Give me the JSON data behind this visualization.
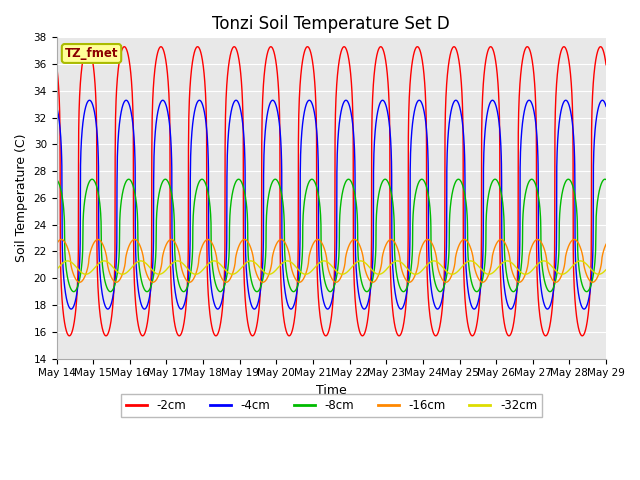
{
  "title": "Tonzi Soil Temperature Set D",
  "xlabel": "Time",
  "ylabel": "Soil Temperature (C)",
  "ylim": [
    14,
    38
  ],
  "x_tick_labels": [
    "May 14",
    "May 15",
    "May 16",
    "May 17",
    "May 18",
    "May 19",
    "May 20",
    "May 21",
    "May 22",
    "May 23",
    "May 24",
    "May 25",
    "May 26",
    "May 27",
    "May 28",
    "May 29"
  ],
  "series": {
    "-2cm": {
      "color": "#FF0000",
      "amplitude": 10.8,
      "mean": 26.5,
      "lag": 0.0,
      "sharpness": 4.0
    },
    "-4cm": {
      "color": "#0000FF",
      "amplitude": 7.8,
      "mean": 25.5,
      "lag": 0.05,
      "sharpness": 3.5
    },
    "-8cm": {
      "color": "#00BB00",
      "amplitude": 4.2,
      "mean": 23.2,
      "lag": 0.12,
      "sharpness": 2.5
    },
    "-16cm": {
      "color": "#FF8800",
      "amplitude": 1.6,
      "mean": 21.3,
      "lag": 0.28,
      "sharpness": 1.5
    },
    "-32cm": {
      "color": "#DDDD00",
      "amplitude": 0.5,
      "mean": 20.8,
      "lag": 0.45,
      "sharpness": 1.0
    }
  },
  "legend_label": "TZ_fmet",
  "legend_bg": "#FFFF99",
  "legend_edge": "#AABB00",
  "plot_bg": "#E8E8E8",
  "fig_bg": "#FFFFFF",
  "grid_color": "#FFFFFF",
  "title_fontsize": 12,
  "axis_fontsize": 9,
  "tick_fontsize": 7.5
}
